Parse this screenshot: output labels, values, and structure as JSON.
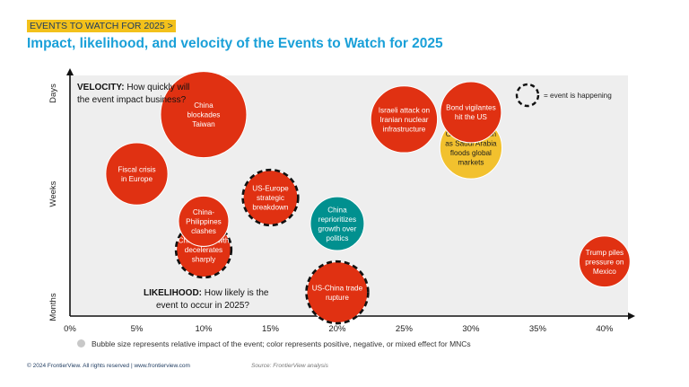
{
  "header": {
    "tag": "EVENTS TO WATCH FOR 2025 >",
    "title": "Impact, likelihood, and velocity of the Events to Watch for 2025"
  },
  "chart_data": {
    "type": "bubble",
    "x_ticks": [
      "0%",
      "5%",
      "10%",
      "15%",
      "20%",
      "25%",
      "30%",
      "35%",
      "40%"
    ],
    "xlim": [
      0,
      40
    ],
    "y_ticks": [
      "Months",
      "Weeks",
      "Days"
    ],
    "velocity_prefix": "VELOCITY:",
    "velocity_line1": " How quickly will",
    "velocity_line2": "the event impact business?",
    "likelihood_prefix": "LIKELIHOOD:",
    "likelihood_line1": " How likely is the",
    "likelihood_line2": "event to occur in 2025?",
    "legend_happening": "= event is happening",
    "size_note": "Bubble size represents relative impact of the event; color represents positive, negative, or mixed effect for MNCs",
    "colors": {
      "negative": "#e03112",
      "positive": "#01908f",
      "mixed": "#f2c12e"
    },
    "bubbles": [
      {
        "lines": [
          "China",
          "blockades",
          "Taiwan"
        ],
        "likelihood": 10,
        "velocity": 0.85,
        "impact": 1.0,
        "color": "negative",
        "happening": false
      },
      {
        "lines": [
          "Israeli attack on",
          "Iranian nuclear",
          "infrastructure"
        ],
        "likelihood": 25,
        "velocity": 0.83,
        "impact": 0.6,
        "color": "negative",
        "happening": false
      },
      {
        "lines": [
          "Oil prices crash",
          "as Saudi Arabia",
          "floods global",
          "markets"
        ],
        "likelihood": 30,
        "velocity": 0.71,
        "impact": 0.52,
        "color": "mixed",
        "happening": false
      },
      {
        "lines": [
          "Bond vigilantes",
          "hit the US"
        ],
        "likelihood": 30,
        "velocity": 0.86,
        "impact": 0.5,
        "color": "negative",
        "happening": false
      },
      {
        "lines": [
          "Fiscal crisis",
          "in Europe"
        ],
        "likelihood": 5,
        "velocity": 0.6,
        "impact": 0.52,
        "color": "negative",
        "happening": false
      },
      {
        "lines": [
          "US-Europe",
          "strategic",
          "breakdown"
        ],
        "likelihood": 15,
        "velocity": 0.5,
        "impact": 0.4,
        "color": "negative",
        "happening": true
      },
      {
        "lines": [
          "China",
          "reprioritizes",
          "growth over",
          "politics"
        ],
        "likelihood": 20,
        "velocity": 0.39,
        "impact": 0.39,
        "color": "positive",
        "happening": false
      },
      {
        "lines": [
          "Chinese growth",
          "decelerates",
          "sharply"
        ],
        "likelihood": 10,
        "velocity": 0.28,
        "impact": 0.4,
        "color": "negative",
        "happening": true
      },
      {
        "lines": [
          "China-",
          "Philippines",
          "clashes"
        ],
        "likelihood": 10,
        "velocity": 0.4,
        "impact": 0.34,
        "color": "negative",
        "happening": false
      },
      {
        "lines": [
          "US-China trade",
          "rupture"
        ],
        "likelihood": 20,
        "velocity": 0.1,
        "impact": 0.5,
        "color": "negative",
        "happening": true
      },
      {
        "lines": [
          "Trump piles",
          "pressure on",
          "Mexico"
        ],
        "likelihood": 40,
        "velocity": 0.23,
        "impact": 0.35,
        "color": "negative",
        "happening": false
      }
    ]
  },
  "footer": {
    "copyright": "© 2024 FrontierView. All rights reserved | www.frontierview.com",
    "source": "Source: FrontierView analysis"
  }
}
